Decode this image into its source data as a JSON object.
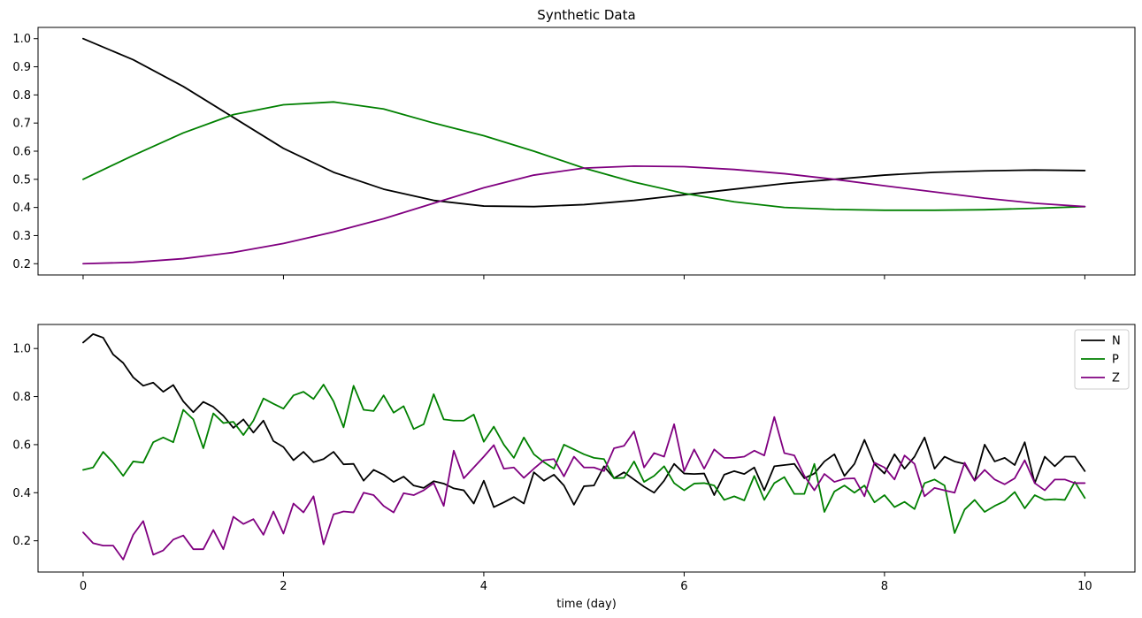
{
  "chart_data": [
    {
      "type": "line",
      "title": "Synthetic Data",
      "xlabel": "",
      "ylabel": "",
      "xlim": [
        -0.45,
        10.5
      ],
      "ylim": [
        0.16,
        1.04
      ],
      "xticks": [
        0,
        2,
        4,
        6,
        8,
        10
      ],
      "show_xtick_labels": false,
      "yticks": [
        0.2,
        0.3,
        0.4,
        0.5,
        0.6,
        0.7,
        0.8,
        0.9,
        1.0
      ],
      "ytick_labels": [
        "0.2",
        "0.3",
        "0.4",
        "0.5",
        "0.6",
        "0.7",
        "0.8",
        "0.9",
        "1.0"
      ],
      "grid": false,
      "legend": null,
      "x": [
        0,
        0.5,
        1,
        1.5,
        2,
        2.5,
        3,
        3.5,
        4,
        4.5,
        5,
        5.5,
        6,
        6.5,
        7,
        7.5,
        8,
        8.5,
        9,
        9.5,
        10
      ],
      "series": [
        {
          "color": "#000000",
          "values": [
            1.0,
            0.925,
            0.83,
            0.72,
            0.61,
            0.525,
            0.465,
            0.425,
            0.405,
            0.403,
            0.41,
            0.425,
            0.445,
            0.465,
            0.485,
            0.5,
            0.515,
            0.525,
            0.53,
            0.533,
            0.531
          ]
        },
        {
          "color": "#008000",
          "values": [
            0.5,
            0.585,
            0.665,
            0.73,
            0.765,
            0.775,
            0.75,
            0.7,
            0.655,
            0.6,
            0.54,
            0.49,
            0.45,
            0.42,
            0.4,
            0.393,
            0.39,
            0.39,
            0.392,
            0.397,
            0.403
          ]
        },
        {
          "color": "#800080",
          "values": [
            0.2,
            0.205,
            0.218,
            0.24,
            0.272,
            0.313,
            0.36,
            0.415,
            0.47,
            0.515,
            0.54,
            0.547,
            0.545,
            0.535,
            0.52,
            0.5,
            0.477,
            0.455,
            0.433,
            0.415,
            0.403
          ]
        }
      ]
    },
    {
      "type": "line",
      "title": "",
      "xlabel": "time (day)",
      "ylabel": "",
      "xlim": [
        -0.45,
        10.5
      ],
      "ylim": [
        0.07,
        1.1
      ],
      "xticks": [
        0,
        2,
        4,
        6,
        8,
        10
      ],
      "xtick_labels": [
        "0",
        "2",
        "4",
        "6",
        "8",
        "10"
      ],
      "yticks": [
        0.2,
        0.4,
        0.6,
        0.8,
        1.0
      ],
      "ytick_labels": [
        "0.2",
        "0.4",
        "0.6",
        "0.8",
        "1.0"
      ],
      "grid": false,
      "legend": "top-right",
      "x_start": 0,
      "x_step": 0.1,
      "series": [
        {
          "name": "N",
          "color": "#000000",
          "values": [
            1.025,
            1.06,
            1.045,
            0.975,
            0.94,
            0.88,
            0.845,
            0.858,
            0.82,
            0.848,
            0.78,
            0.735,
            0.778,
            0.757,
            0.72,
            0.67,
            0.705,
            0.65,
            0.7,
            0.615,
            0.59,
            0.535,
            0.57,
            0.527,
            0.54,
            0.57,
            0.518,
            0.52,
            0.45,
            0.495,
            0.475,
            0.445,
            0.467,
            0.43,
            0.42,
            0.448,
            0.438,
            0.418,
            0.41,
            0.355,
            0.45,
            0.34,
            0.36,
            0.382,
            0.355,
            0.485,
            0.45,
            0.475,
            0.43,
            0.35,
            0.427,
            0.43,
            0.51,
            0.46,
            0.485,
            0.455,
            0.425,
            0.4,
            0.45,
            0.52,
            0.48,
            0.478,
            0.48,
            0.39,
            0.475,
            0.49,
            0.478,
            0.505,
            0.41,
            0.51,
            0.515,
            0.52,
            0.46,
            0.48,
            0.53,
            0.56,
            0.47,
            0.52,
            0.62,
            0.52,
            0.48,
            0.56,
            0.5,
            0.55,
            0.63,
            0.5,
            0.55,
            0.53,
            0.52,
            0.45,
            0.6,
            0.53,
            0.545,
            0.515,
            0.61,
            0.44,
            0.55,
            0.51,
            0.55,
            0.55,
            0.49
          ]
        },
        {
          "name": "P",
          "color": "#008000",
          "values": [
            0.495,
            0.505,
            0.57,
            0.525,
            0.47,
            0.53,
            0.525,
            0.61,
            0.63,
            0.61,
            0.745,
            0.705,
            0.585,
            0.73,
            0.69,
            0.695,
            0.64,
            0.7,
            0.792,
            0.77,
            0.75,
            0.805,
            0.82,
            0.79,
            0.85,
            0.78,
            0.672,
            0.845,
            0.745,
            0.74,
            0.805,
            0.733,
            0.76,
            0.665,
            0.685,
            0.81,
            0.705,
            0.7,
            0.7,
            0.725,
            0.612,
            0.675,
            0.6,
            0.545,
            0.63,
            0.56,
            0.527,
            0.5,
            0.6,
            0.58,
            0.56,
            0.545,
            0.54,
            0.46,
            0.462,
            0.53,
            0.445,
            0.47,
            0.51,
            0.44,
            0.41,
            0.438,
            0.44,
            0.43,
            0.37,
            0.385,
            0.368,
            0.47,
            0.37,
            0.44,
            0.465,
            0.395,
            0.395,
            0.52,
            0.32,
            0.405,
            0.43,
            0.4,
            0.43,
            0.36,
            0.39,
            0.34,
            0.362,
            0.332,
            0.44,
            0.455,
            0.43,
            0.232,
            0.33,
            0.37,
            0.32,
            0.345,
            0.365,
            0.403,
            0.335,
            0.39,
            0.37,
            0.373,
            0.37,
            0.445,
            0.378
          ]
        },
        {
          "name": "Z",
          "color": "#800080",
          "values": [
            0.235,
            0.19,
            0.18,
            0.18,
            0.122,
            0.225,
            0.282,
            0.142,
            0.16,
            0.205,
            0.222,
            0.165,
            0.165,
            0.245,
            0.165,
            0.3,
            0.27,
            0.29,
            0.225,
            0.322,
            0.23,
            0.355,
            0.318,
            0.385,
            0.185,
            0.31,
            0.322,
            0.318,
            0.4,
            0.39,
            0.345,
            0.318,
            0.398,
            0.39,
            0.41,
            0.44,
            0.345,
            0.575,
            0.46,
            0.505,
            0.55,
            0.598,
            0.5,
            0.505,
            0.462,
            0.5,
            0.535,
            0.54,
            0.468,
            0.55,
            0.505,
            0.505,
            0.49,
            0.585,
            0.595,
            0.655,
            0.505,
            0.565,
            0.55,
            0.685,
            0.49,
            0.58,
            0.5,
            0.58,
            0.545,
            0.545,
            0.55,
            0.575,
            0.555,
            0.715,
            0.565,
            0.555,
            0.47,
            0.41,
            0.478,
            0.445,
            0.458,
            0.46,
            0.385,
            0.525,
            0.505,
            0.455,
            0.555,
            0.52,
            0.385,
            0.42,
            0.41,
            0.4,
            0.525,
            0.45,
            0.495,
            0.455,
            0.435,
            0.46,
            0.535,
            0.44,
            0.41,
            0.455,
            0.455,
            0.44,
            0.44
          ]
        }
      ]
    }
  ]
}
